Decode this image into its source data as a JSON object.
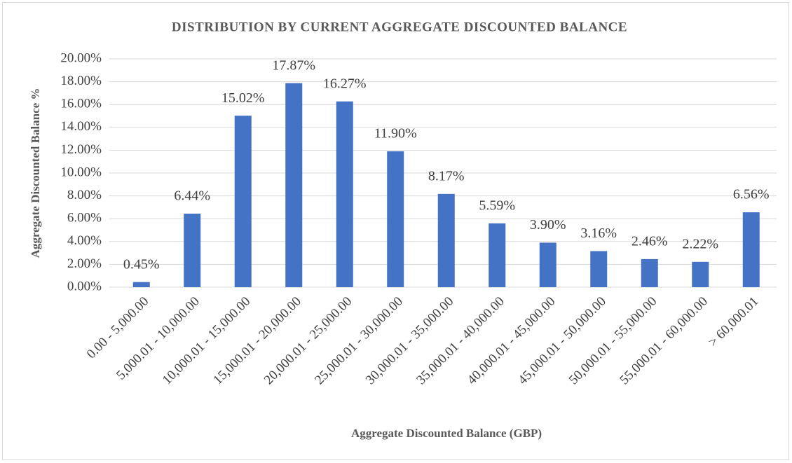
{
  "chart_data": {
    "type": "bar",
    "title": "DISTRIBUTION BY CURRENT AGGREGATE DISCOUNTED BALANCE",
    "x_label": "Aggregate Discounted Balance (GBP)",
    "y_label": "Aggregate Discounted Balance %",
    "categories": [
      "0.00 - 5,000.00",
      "5,000.01 - 10,000.00",
      "10,000.01 - 15,000.00",
      "15,000.01 - 20,000.00",
      "20,000.01 - 25,000.00",
      "25,000.01 - 30,000.00",
      "30,000.01 - 35,000.00",
      "35,000.01 - 40,000.00",
      "40,000.01 - 45,000.00",
      "45,000.01 - 50,000.00",
      "50,000.01 - 55,000.00",
      "55,000.01 - 60,000.00",
      "> 60,000.01"
    ],
    "values": [
      0.45,
      6.44,
      15.02,
      17.87,
      16.27,
      11.9,
      8.17,
      5.59,
      3.9,
      3.16,
      2.46,
      2.22,
      6.56
    ],
    "value_labels": [
      "0.45%",
      "6.44%",
      "15.02%",
      "17.87%",
      "16.27%",
      "11.90%",
      "8.17%",
      "5.59%",
      "3.90%",
      "3.16%",
      "2.46%",
      "2.22%",
      "6.56%"
    ],
    "color": "#4472c4",
    "ylim": [
      0,
      20
    ],
    "yticks": [
      {
        "value": 0,
        "label": "0.00%"
      },
      {
        "value": 2,
        "label": "2.00%"
      },
      {
        "value": 4,
        "label": "4.00%"
      },
      {
        "value": 6,
        "label": "6.00%"
      },
      {
        "value": 8,
        "label": "8.00%"
      },
      {
        "value": 10,
        "label": "10.00%"
      },
      {
        "value": 12,
        "label": "12.00%"
      },
      {
        "value": 14,
        "label": "14.00%"
      },
      {
        "value": 16,
        "label": "16.00%"
      },
      {
        "value": 18,
        "label": "18.00%"
      },
      {
        "value": 20,
        "label": "20.00%"
      }
    ],
    "grid": true
  }
}
